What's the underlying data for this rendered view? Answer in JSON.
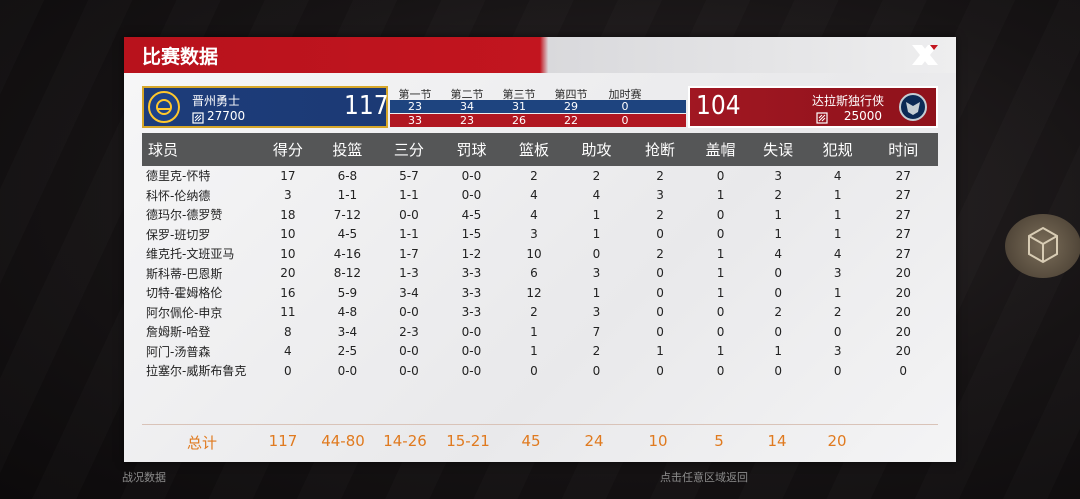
{
  "panel": {
    "title": "比赛数据"
  },
  "teams": {
    "home": {
      "name": "晋州勇士",
      "rating": "27700",
      "score": "117",
      "color": "#1d3c7a"
    },
    "away": {
      "name": "达拉斯独行侠",
      "rating": "25000",
      "score": "104",
      "color": "#a11722"
    }
  },
  "quarters": {
    "headers": [
      "第一节",
      "第二节",
      "第三节",
      "第四节",
      "加时赛"
    ],
    "home": [
      "23",
      "34",
      "31",
      "29",
      "0"
    ],
    "away": [
      "33",
      "23",
      "26",
      "22",
      "0"
    ]
  },
  "table": {
    "columns": [
      "球员",
      "得分",
      "投篮",
      "三分",
      "罚球",
      "篮板",
      "助攻",
      "抢断",
      "盖帽",
      "失误",
      "犯规",
      "时间"
    ],
    "rows": [
      [
        "德里克-怀特",
        "17",
        "6-8",
        "5-7",
        "0-0",
        "2",
        "2",
        "2",
        "0",
        "3",
        "4",
        "27"
      ],
      [
        "科怀-伦纳德",
        "3",
        "1-1",
        "1-1",
        "0-0",
        "4",
        "4",
        "3",
        "1",
        "2",
        "1",
        "27"
      ],
      [
        "德玛尔-德罗赞",
        "18",
        "7-12",
        "0-0",
        "4-5",
        "4",
        "1",
        "2",
        "0",
        "1",
        "1",
        "27"
      ],
      [
        "保罗-班切罗",
        "10",
        "4-5",
        "1-1",
        "1-5",
        "3",
        "1",
        "0",
        "0",
        "1",
        "1",
        "27"
      ],
      [
        "维克托-文班亚马",
        "10",
        "4-16",
        "1-7",
        "1-2",
        "10",
        "0",
        "2",
        "1",
        "4",
        "4",
        "27"
      ],
      [
        "斯科蒂-巴恩斯",
        "20",
        "8-12",
        "1-3",
        "3-3",
        "6",
        "3",
        "0",
        "1",
        "0",
        "3",
        "20"
      ],
      [
        "切特-霍姆格伦",
        "16",
        "5-9",
        "3-4",
        "3-3",
        "12",
        "1",
        "0",
        "1",
        "0",
        "1",
        "20"
      ],
      [
        "阿尔佩伦-申京",
        "11",
        "4-8",
        "0-0",
        "3-3",
        "2",
        "3",
        "0",
        "0",
        "2",
        "2",
        "20"
      ],
      [
        "詹姆斯-哈登",
        "8",
        "3-4",
        "2-3",
        "0-0",
        "1",
        "7",
        "0",
        "0",
        "0",
        "0",
        "20"
      ],
      [
        "阿门-汤普森",
        "4",
        "2-5",
        "0-0",
        "0-0",
        "1",
        "2",
        "1",
        "1",
        "1",
        "3",
        "20"
      ],
      [
        "拉塞尔-威斯布鲁克",
        "0",
        "0-0",
        "0-0",
        "0-0",
        "0",
        "0",
        "0",
        "0",
        "0",
        "0",
        "0"
      ]
    ],
    "highlights": [
      [
        0,
        10
      ],
      [
        1,
        7
      ],
      [
        1,
        8
      ],
      [
        4,
        8
      ],
      [
        4,
        9
      ],
      [
        4,
        10
      ],
      [
        5,
        1
      ],
      [
        5,
        8
      ],
      [
        6,
        5
      ],
      [
        6,
        8
      ],
      [
        8,
        6
      ],
      [
        9,
        8
      ]
    ],
    "totals": [
      "总计",
      "117",
      "44-80",
      "14-26",
      "15-21",
      "45",
      "24",
      "10",
      "5",
      "14",
      "20"
    ]
  },
  "footer": {
    "left": "战况数据",
    "right": "点击任意区域返回"
  },
  "colors": {
    "accent": "#c2151f",
    "highlight": "#d41e1e",
    "totals": "#e07a1f"
  }
}
